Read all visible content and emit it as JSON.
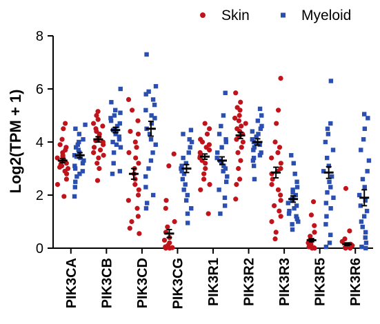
{
  "chart_data": {
    "type": "scatter",
    "ylabel": "Log2(TPM + 1)",
    "ylim": [
      0,
      8
    ],
    "yticks": [
      0,
      2,
      4,
      6,
      8
    ],
    "categories": [
      "PIK3CA",
      "PIK3CB",
      "PIK3CD",
      "PIK3CG",
      "PIK3R1",
      "PIK3R2",
      "PIK3R3",
      "PIK3R5",
      "PIK3R6"
    ],
    "legend_position": "top-right",
    "series": [
      {
        "name": "Skin",
        "color": "#c0141c",
        "marker": "circle",
        "means": [
          3.3,
          4.1,
          2.8,
          0.55,
          3.45,
          4.25,
          2.85,
          0.3,
          0.15
        ],
        "sems": [
          0.08,
          0.1,
          0.2,
          0.15,
          0.1,
          0.12,
          0.2,
          0.06,
          0.05
        ],
        "points": [
          [
            4.7,
            4.5,
            4.1,
            3.9,
            3.8,
            3.7,
            3.6,
            3.5,
            3.45,
            3.4,
            3.35,
            3.3,
            3.25,
            3.2,
            3.15,
            3.1,
            3.05,
            3.0,
            2.9,
            2.8,
            2.6,
            2.4,
            1.95
          ],
          [
            5.15,
            5.0,
            4.85,
            4.7,
            4.6,
            4.5,
            4.4,
            4.3,
            4.2,
            4.1,
            4.05,
            4.0,
            3.9,
            3.8,
            3.7,
            3.6,
            3.5,
            3.4,
            3.2,
            3.0,
            2.55
          ],
          [
            5.6,
            5.2,
            4.8,
            4.4,
            4.3,
            4.0,
            3.8,
            3.6,
            3.4,
            3.2,
            3.0,
            2.8,
            2.6,
            2.4,
            2.2,
            2.0,
            1.8,
            1.5,
            1.2,
            1.0,
            0.75,
            0.55
          ],
          [
            3.55,
            3.1,
            1.8,
            1.5,
            1.0,
            0.8,
            0.6,
            0.4,
            0.3,
            0.2,
            0.1,
            0.05,
            0.02,
            0.0,
            0.0
          ],
          [
            4.7,
            4.5,
            4.3,
            4.1,
            4.0,
            3.9,
            3.8,
            3.7,
            3.6,
            3.5,
            3.45,
            3.4,
            3.3,
            3.2,
            3.0,
            2.8,
            2.6,
            2.4,
            2.2,
            1.3
          ],
          [
            5.85,
            5.5,
            5.3,
            5.2,
            5.0,
            4.9,
            4.8,
            4.7,
            4.6,
            4.5,
            4.4,
            4.3,
            4.2,
            4.1,
            4.0,
            3.8,
            3.6,
            3.3,
            3.0,
            2.6,
            2.4,
            1.85
          ],
          [
            6.4,
            5.2,
            4.7,
            4.0,
            3.8,
            3.6,
            3.4,
            3.2,
            3.0,
            2.9,
            2.8,
            2.6,
            2.4,
            2.2,
            2.0,
            1.8,
            1.6,
            1.4,
            1.2,
            1.0,
            0.6,
            0.35
          ],
          [
            1.75,
            1.25,
            0.85,
            0.6,
            0.45,
            0.3,
            0.2,
            0.15,
            0.1,
            0.05,
            0.02,
            0.0,
            0.0
          ],
          [
            2.25,
            0.65,
            0.35,
            0.25,
            0.15,
            0.1,
            0.05,
            0.02,
            0.0,
            0.0
          ]
        ]
      },
      {
        "name": "Myeloid",
        "color": "#2a4fb0",
        "marker": "square",
        "means": [
          3.5,
          4.45,
          4.5,
          3.0,
          3.3,
          4.0,
          1.85,
          2.85,
          1.9
        ],
        "sems": [
          0.1,
          0.1,
          0.28,
          0.15,
          0.14,
          0.12,
          0.12,
          0.22,
          0.3
        ],
        "points": [
          [
            4.65,
            4.5,
            4.3,
            4.1,
            4.0,
            3.9,
            3.8,
            3.7,
            3.6,
            3.5,
            3.45,
            3.4,
            3.3,
            3.2,
            3.1,
            3.0,
            2.9,
            2.8,
            2.7,
            2.5,
            2.3,
            1.95
          ],
          [
            6.0,
            5.5,
            5.2,
            5.1,
            5.0,
            4.9,
            4.8,
            4.7,
            4.6,
            4.5,
            4.45,
            4.4,
            4.3,
            4.2,
            4.1,
            4.0,
            3.9,
            3.8,
            3.6,
            3.2,
            2.9,
            2.8
          ],
          [
            7.3,
            6.1,
            5.9,
            5.8,
            5.6,
            5.4,
            5.2,
            5.0,
            4.9,
            4.7,
            4.5,
            4.3,
            4.1,
            3.9,
            3.6,
            3.3,
            3.0,
            2.7,
            2.3,
            2.0,
            1.7,
            1.5
          ],
          [
            4.45,
            4.3,
            4.1,
            4.0,
            3.8,
            3.6,
            3.4,
            3.2,
            3.1,
            3.0,
            2.9,
            2.8,
            2.6,
            2.4,
            2.2,
            2.0,
            1.8,
            1.5,
            1.3,
            0.95
          ],
          [
            5.85,
            5.0,
            4.6,
            4.3,
            4.1,
            4.0,
            3.8,
            3.6,
            3.4,
            3.3,
            3.2,
            3.1,
            3.0,
            2.9,
            2.7,
            2.5,
            2.2,
            1.9,
            1.6,
            1.3
          ],
          [
            5.25,
            5.0,
            4.8,
            4.6,
            4.5,
            4.4,
            4.3,
            4.2,
            4.1,
            4.0,
            3.95,
            3.9,
            3.8,
            3.7,
            3.6,
            3.5,
            3.4,
            3.3,
            3.1,
            2.6
          ],
          [
            3.5,
            3.2,
            2.8,
            2.5,
            2.3,
            2.2,
            2.1,
            2.0,
            1.9,
            1.85,
            1.8,
            1.7,
            1.6,
            1.5,
            1.4,
            1.3,
            1.2,
            1.1,
            1.0,
            0.9,
            0.7
          ],
          [
            6.3,
            4.7,
            4.5,
            4.3,
            4.0,
            3.7,
            3.4,
            3.1,
            2.9,
            2.7,
            2.5,
            2.3,
            2.1,
            1.9,
            1.7,
            1.5,
            1.2,
            0.9,
            0.5,
            0.2,
            0.05
          ],
          [
            5.05,
            4.9,
            4.5,
            4.1,
            3.7,
            3.3,
            2.9,
            2.6,
            2.3,
            2.0,
            1.8,
            1.6,
            1.4,
            1.2,
            1.0,
            0.8,
            0.6,
            0.4,
            0.2,
            0.05,
            0.0
          ]
        ]
      }
    ]
  }
}
